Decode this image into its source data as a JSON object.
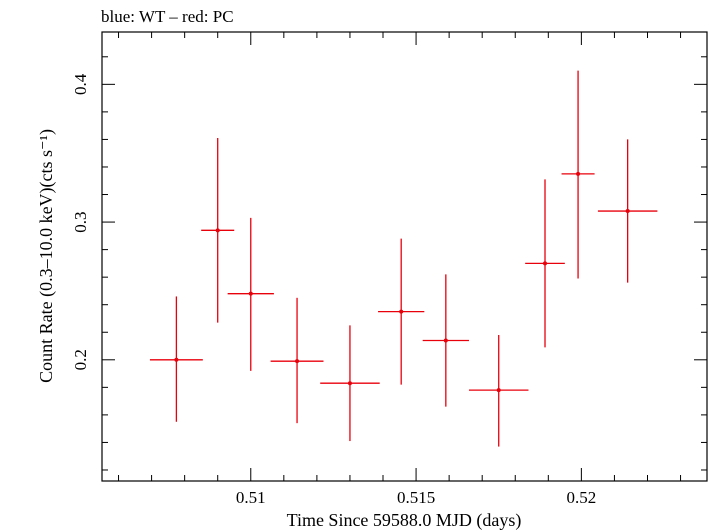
{
  "chart_data": {
    "type": "scatter",
    "title": "blue: WT – red: PC",
    "xlabel": "Time Since 59588.0 MJD (days)",
    "ylabel": "Count Rate (0.3–10.0 keV)(cts s⁻¹)",
    "xlim": [
      0.5055,
      0.5238
    ],
    "ylim": [
      0.112,
      0.438
    ],
    "x_major_ticks": [
      0.51,
      0.515,
      0.52
    ],
    "x_tick_labels": [
      "0.51",
      "0.515",
      "0.52"
    ],
    "x_minor_step": 0.001,
    "y_major_ticks": [
      0.2,
      0.3,
      0.4
    ],
    "y_tick_labels": [
      "0.2",
      "0.3",
      "0.4"
    ],
    "y_minor_step": 0.02,
    "grid": false,
    "series": [
      {
        "color": "#e8000b",
        "points": [
          {
            "x": 0.50775,
            "xerr": 0.0008,
            "y": 0.2,
            "yerr_low": 0.045,
            "yerr_high": 0.046
          },
          {
            "x": 0.509,
            "xerr": 0.0005,
            "y": 0.294,
            "yerr_low": 0.067,
            "yerr_high": 0.067
          },
          {
            "x": 0.51,
            "xerr": 0.0007,
            "y": 0.248,
            "yerr_low": 0.056,
            "yerr_high": 0.055
          },
          {
            "x": 0.5114,
            "xerr": 0.0008,
            "y": 0.199,
            "yerr_low": 0.045,
            "yerr_high": 0.046
          },
          {
            "x": 0.513,
            "xerr": 0.0009,
            "y": 0.183,
            "yerr_low": 0.042,
            "yerr_high": 0.042
          },
          {
            "x": 0.51455,
            "xerr": 0.0007,
            "y": 0.235,
            "yerr_low": 0.053,
            "yerr_high": 0.053
          },
          {
            "x": 0.5159,
            "xerr": 0.0007,
            "y": 0.214,
            "yerr_low": 0.048,
            "yerr_high": 0.048
          },
          {
            "x": 0.5175,
            "xerr": 0.0009,
            "y": 0.178,
            "yerr_low": 0.041,
            "yerr_high": 0.04
          },
          {
            "x": 0.5189,
            "xerr": 0.0006,
            "y": 0.27,
            "yerr_low": 0.061,
            "yerr_high": 0.061
          },
          {
            "x": 0.5199,
            "xerr": 0.0005,
            "y": 0.335,
            "yerr_low": 0.076,
            "yerr_high": 0.075
          },
          {
            "x": 0.5214,
            "xerr": 0.0009,
            "y": 0.308,
            "yerr_low": 0.052,
            "yerr_high": 0.052
          }
        ]
      }
    ]
  }
}
